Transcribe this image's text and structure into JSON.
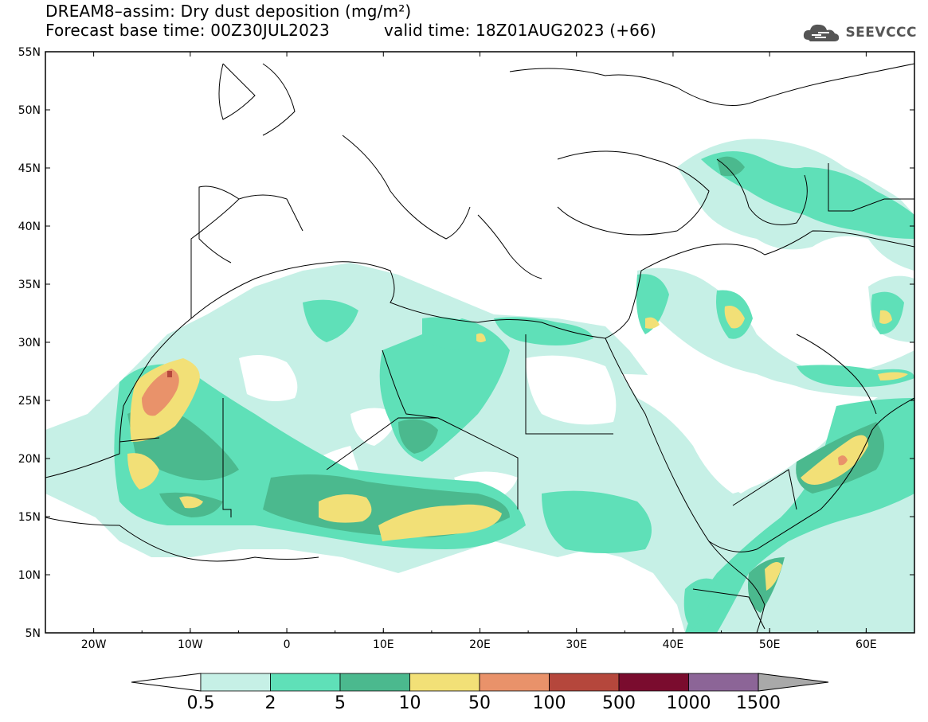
{
  "title_line1": "DREAM8–assim: Dry dust deposition (mg/m²)",
  "title_line2": "Forecast base time: 00Z30JUL2023",
  "title_line3": "valid time: 18Z01AUG2023 (+66)",
  "logo_text": "SEEVCCC",
  "map": {
    "lon_range": [
      -25,
      65
    ],
    "lat_range": [
      5,
      55
    ],
    "lon_ticks": [
      "20W",
      "10W",
      "0",
      "10E",
      "20E",
      "30E",
      "40E",
      "50E",
      "60E"
    ],
    "lat_ticks": [
      "55N",
      "50N",
      "45N",
      "40N",
      "35N",
      "30N",
      "25N",
      "20N",
      "15N",
      "10N",
      "5N"
    ]
  },
  "colorbar": {
    "labels": [
      "0.5",
      "2",
      "5",
      "10",
      "50",
      "100",
      "500",
      "1000",
      "1500"
    ],
    "colors": [
      "#c6f0e6",
      "#5fe0b8",
      "#4bb98e",
      "#f2e077",
      "#e9926a",
      "#b5473c",
      "#7a0c2e",
      "#8c6597"
    ],
    "over_color": "#a9a9a9"
  },
  "colors": {
    "light": "#c6f0e6",
    "mid": "#5fe0b8",
    "dark": "#4bb98e",
    "yellow": "#f2e077",
    "orange": "#e9926a",
    "brown": "#b5473c"
  }
}
